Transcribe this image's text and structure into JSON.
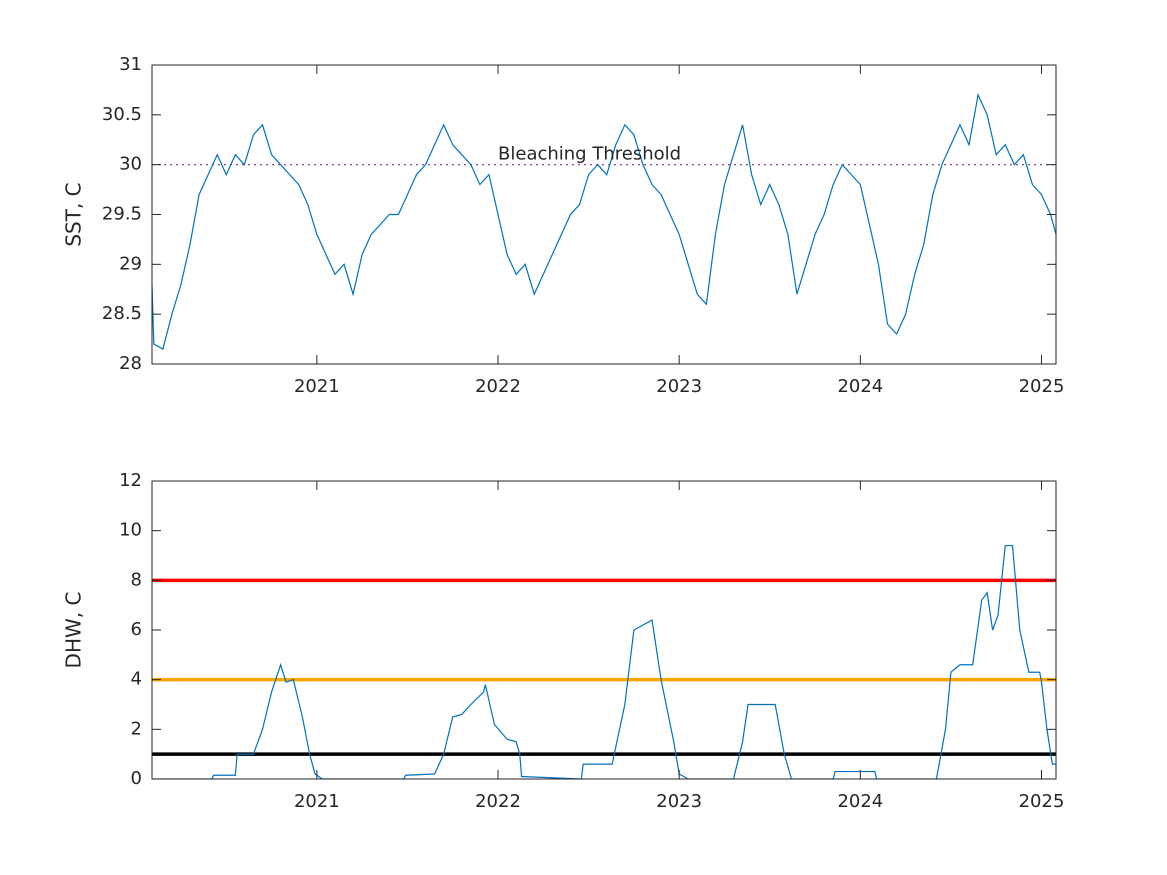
{
  "chart_data": [
    {
      "type": "line",
      "ylabel": "SST, C",
      "xlim": [
        2020.09,
        2025.08
      ],
      "ylim": [
        28,
        31
      ],
      "xticks": [
        2021,
        2022,
        2023,
        2024,
        2025
      ],
      "yticks": [
        28,
        28.5,
        29,
        29.5,
        30,
        30.5,
        31
      ],
      "series": [
        {
          "color": "#0072bd",
          "x": [
            2020.09,
            2020.1,
            2020.15,
            2020.2,
            2020.25,
            2020.3,
            2020.35,
            2020.4,
            2020.45,
            2020.5,
            2020.55,
            2020.6,
            2020.65,
            2020.7,
            2020.75,
            2020.8,
            2020.85,
            2020.9,
            2020.95,
            2021.0,
            2021.05,
            2021.1,
            2021.15,
            2021.2,
            2021.25,
            2021.3,
            2021.35,
            2021.4,
            2021.45,
            2021.5,
            2021.55,
            2021.6,
            2021.65,
            2021.7,
            2021.75,
            2021.8,
            2021.85,
            2021.9,
            2021.95,
            2022.0,
            2022.05,
            2022.1,
            2022.15,
            2022.2,
            2022.25,
            2022.3,
            2022.35,
            2022.4,
            2022.45,
            2022.5,
            2022.55,
            2022.6,
            2022.65,
            2022.7,
            2022.75,
            2022.8,
            2022.85,
            2022.9,
            2022.95,
            2023.0,
            2023.05,
            2023.1,
            2023.15,
            2023.2,
            2023.25,
            2023.3,
            2023.35,
            2023.4,
            2023.45,
            2023.5,
            2023.55,
            2023.6,
            2023.65,
            2023.7,
            2023.75,
            2023.8,
            2023.85,
            2023.9,
            2023.95,
            2024.0,
            2024.05,
            2024.1,
            2024.15,
            2024.2,
            2024.25,
            2024.3,
            2024.35,
            2024.4,
            2024.45,
            2024.5,
            2024.55,
            2024.6,
            2024.65,
            2024.7,
            2024.75,
            2024.8,
            2024.85,
            2024.9,
            2024.95,
            2025.0,
            2025.05,
            2025.08
          ],
          "values": [
            28.8,
            28.2,
            28.15,
            28.5,
            28.8,
            29.2,
            29.7,
            29.9,
            30.1,
            29.9,
            30.1,
            30.0,
            30.3,
            30.4,
            30.1,
            30.0,
            29.9,
            29.8,
            29.6,
            29.3,
            29.1,
            28.9,
            29.0,
            28.7,
            29.1,
            29.3,
            29.4,
            29.5,
            29.5,
            29.7,
            29.9,
            30.0,
            30.2,
            30.4,
            30.2,
            30.1,
            30.0,
            29.8,
            29.9,
            29.5,
            29.1,
            28.9,
            29.0,
            28.7,
            28.9,
            29.1,
            29.3,
            29.5,
            29.6,
            29.9,
            30.0,
            29.9,
            30.2,
            30.4,
            30.3,
            30.0,
            29.8,
            29.7,
            29.5,
            29.3,
            29.0,
            28.7,
            28.6,
            29.3,
            29.8,
            30.1,
            30.4,
            29.9,
            29.6,
            29.8,
            29.6,
            29.3,
            28.7,
            29.0,
            29.3,
            29.5,
            29.8,
            30.0,
            29.9,
            29.8,
            29.4,
            29.0,
            28.4,
            28.3,
            28.5,
            28.9,
            29.2,
            29.7,
            30.0,
            30.2,
            30.4,
            30.2,
            30.7,
            30.5,
            30.1,
            30.2,
            30.0,
            30.1,
            29.8,
            29.7,
            29.5,
            29.3
          ]
        }
      ],
      "hlines": [
        {
          "value": 30,
          "color": "#7e2f8e",
          "style": "dotted"
        }
      ],
      "annotation": {
        "text": "Bleaching Threshold",
        "x": 2022.0,
        "y": 30.1
      }
    },
    {
      "type": "line",
      "ylabel": "DHW, C",
      "xlim": [
        2020.09,
        2025.08
      ],
      "ylim": [
        0,
        12
      ],
      "xticks": [
        2021,
        2022,
        2023,
        2024,
        2025
      ],
      "yticks": [
        0,
        2,
        4,
        6,
        8,
        10,
        12
      ],
      "series": [
        {
          "color": "#0072bd",
          "x": [
            2020.09,
            2020.42,
            2020.43,
            2020.55,
            2020.56,
            2020.65,
            2020.7,
            2020.75,
            2020.8,
            2020.83,
            2020.87,
            2020.92,
            2020.96,
            2020.99,
            2021.03,
            2021.48,
            2021.49,
            2021.65,
            2021.7,
            2021.75,
            2021.8,
            2021.85,
            2021.92,
            2021.93,
            2021.98,
            2022.05,
            2022.1,
            2022.12,
            2022.13,
            2022.46,
            2022.47,
            2022.63,
            2022.7,
            2022.75,
            2022.8,
            2022.85,
            2022.9,
            2022.97,
            2023.0,
            2023.05,
            2023.3,
            2023.35,
            2023.38,
            2023.53,
            2023.58,
            2023.62,
            2023.85,
            2023.86,
            2024.08,
            2024.09,
            2024.42,
            2024.47,
            2024.5,
            2024.55,
            2024.62,
            2024.67,
            2024.7,
            2024.73,
            2024.76,
            2024.8,
            2024.84,
            2024.88,
            2024.93,
            2024.99,
            2025.0,
            2025.03,
            2025.06,
            2025.08
          ],
          "values": [
            0,
            0,
            0.15,
            0.15,
            1,
            1,
            2,
            3.5,
            4.6,
            3.9,
            4,
            2.5,
            1,
            0.2,
            0,
            0,
            0.15,
            0.2,
            1,
            2.5,
            2.6,
            3,
            3.5,
            3.8,
            2.2,
            1.6,
            1.5,
            1,
            0.1,
            0,
            0.6,
            0.6,
            3,
            6.0,
            6.2,
            6.4,
            4,
            1.5,
            0.2,
            0,
            0,
            1.5,
            3,
            3,
            1,
            0,
            0,
            0.3,
            0.3,
            0,
            0,
            2,
            4.3,
            4.6,
            4.6,
            7.2,
            7.5,
            6.0,
            6.6,
            9.4,
            9.4,
            6,
            4.3,
            4.3,
            3.9,
            2,
            0.6,
            0.6
          ]
        }
      ],
      "hlines": [
        {
          "value": 1,
          "color": "#000000",
          "style": "solid"
        },
        {
          "value": 4,
          "color": "#ffa500",
          "style": "solid"
        },
        {
          "value": 8,
          "color": "#ff0000",
          "style": "solid"
        }
      ]
    }
  ]
}
